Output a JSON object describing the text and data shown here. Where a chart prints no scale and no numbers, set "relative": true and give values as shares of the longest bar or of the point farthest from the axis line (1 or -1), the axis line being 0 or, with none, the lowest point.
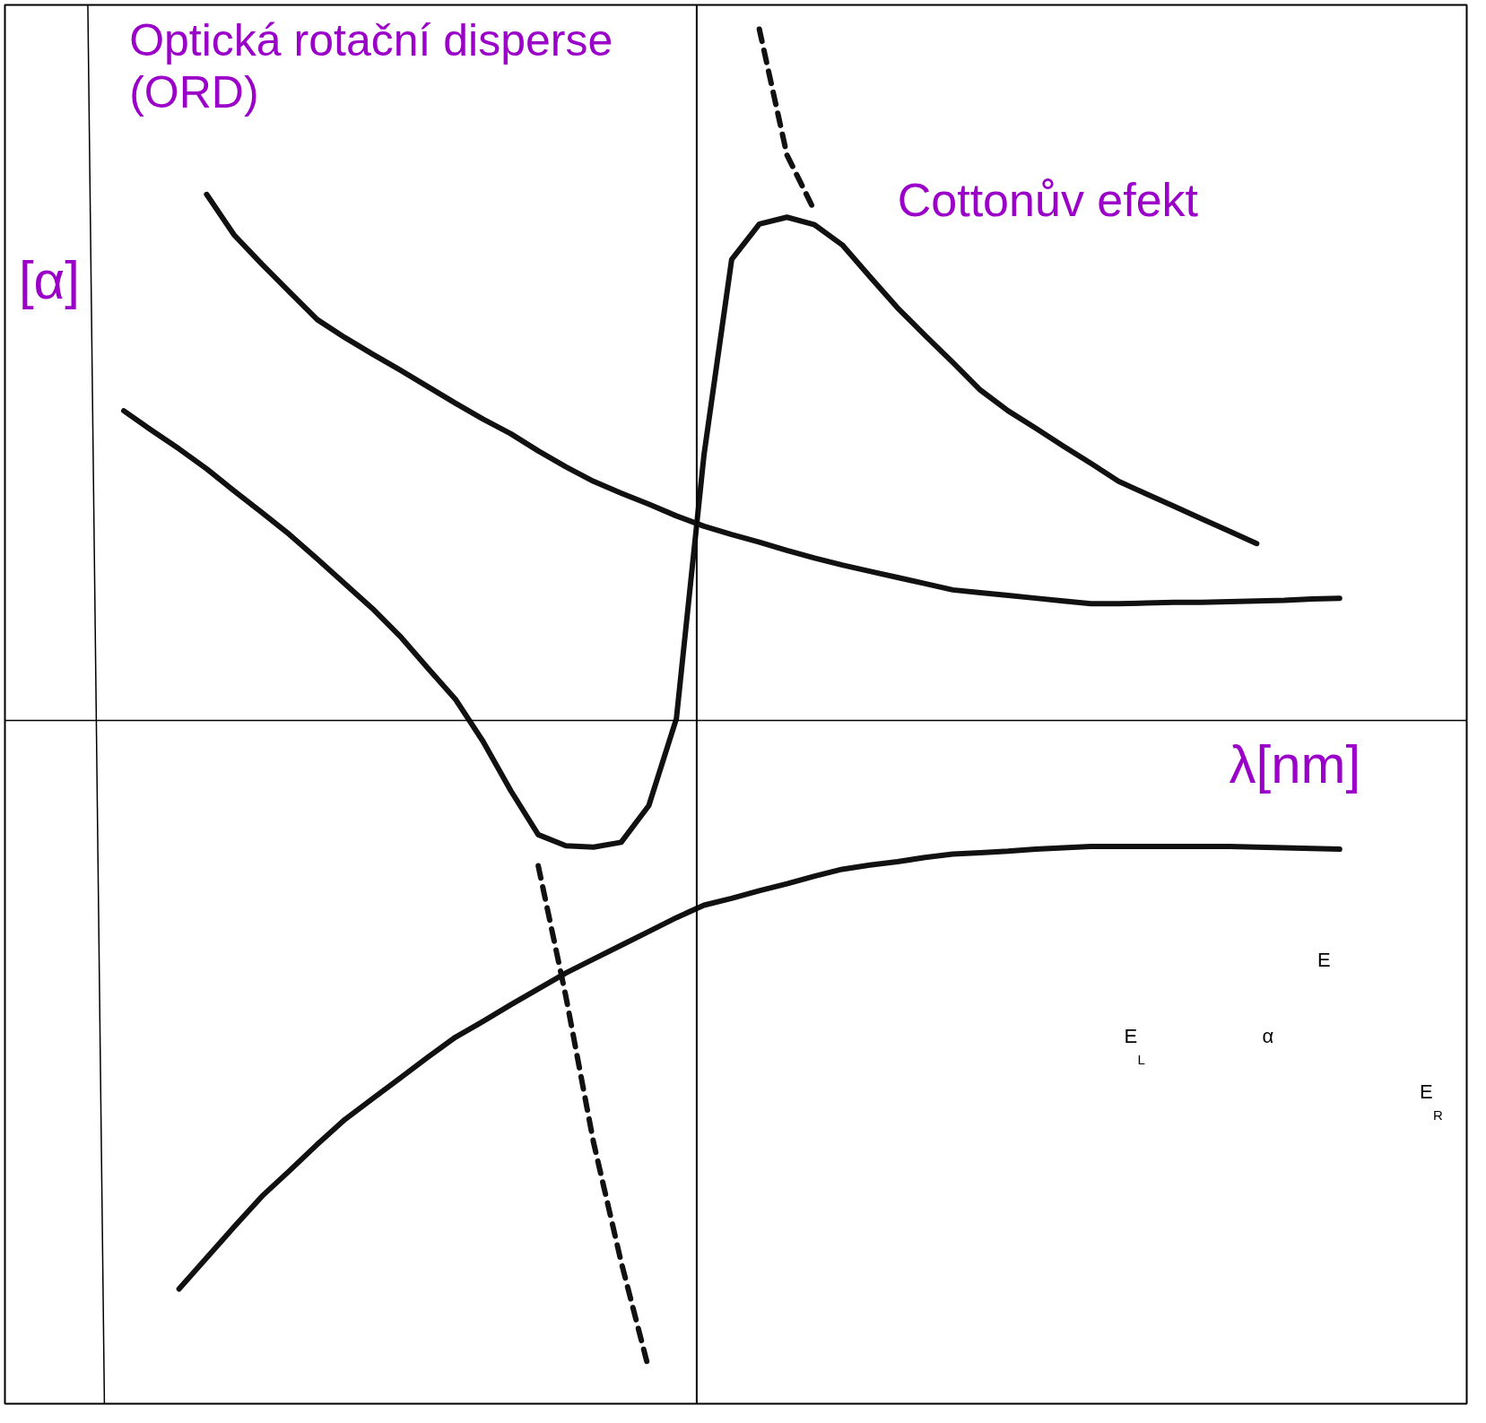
{
  "chart_data": {
    "type": "line",
    "relative": true,
    "title": "Optická rotační disperse\n(ORD)",
    "ylabel": "[α]",
    "xlabel": "λ[nm]",
    "grid": false,
    "marker": "none",
    "annotations": [
      "Cottonův efekt",
      "E",
      "E$_{L}$",
      "E$_{R}$",
      "α"
    ],
    "categories": [
      null,
      null,
      null,
      null,
      null,
      null,
      null,
      null,
      null,
      null,
      null,
      null,
      null,
      null,
      null,
      null,
      null,
      null,
      null,
      null,
      null,
      null,
      null,
      null,
      null,
      null,
      null,
      null,
      null,
      null,
      null,
      null,
      null,
      null,
      null,
      null,
      null,
      null,
      null,
      null,
      null,
      null,
      null,
      null,
      null,
      null
    ],
    "series": [
      {
        "color": "#111111",
        "line_style": "solid",
        "values": [
          null,
          null,
          null,
          null,
          0.761,
          0.702,
          0.66,
          0.62,
          0.58,
          0.554,
          0.53,
          0.507,
          0.483,
          0.459,
          0.436,
          0.415,
          0.39,
          0.367,
          0.346,
          0.329,
          0.313,
          0.296,
          0.281,
          0.269,
          0.258,
          0.246,
          0.235,
          0.225,
          0.216,
          0.207,
          0.198,
          0.189,
          0.185,
          0.181,
          0.177,
          0.173,
          0.169,
          0.169,
          0.17,
          0.171,
          0.171,
          0.172,
          0.173,
          0.174,
          0.176,
          0.177
        ]
      },
      {
        "color": "#111111",
        "line_style": "solid",
        "values": [
          null,
          null,
          null,
          -0.822,
          -0.777,
          -0.732,
          -0.688,
          -0.651,
          -0.613,
          -0.577,
          -0.547,
          -0.517,
          -0.487,
          -0.458,
          -0.435,
          -0.411,
          -0.388,
          -0.365,
          -0.345,
          -0.325,
          -0.305,
          -0.285,
          -0.267,
          -0.257,
          -0.246,
          -0.236,
          -0.225,
          -0.215,
          -0.209,
          -0.204,
          -0.198,
          -0.193,
          -0.191,
          -0.189,
          -0.186,
          -0.184,
          -0.182,
          -0.182,
          -0.182,
          -0.182,
          -0.182,
          -0.182,
          -0.183,
          -0.184,
          -0.185,
          -0.186
        ]
      },
      {
        "color": "#111111",
        "line_style": "solid",
        "values": [
          null,
          0.448,
          0.42,
          0.393,
          0.364,
          0.332,
          0.301,
          0.269,
          0.234,
          0.198,
          0.162,
          0.122,
          0.076,
          0.031,
          -0.03,
          -0.101,
          -0.165,
          -0.181,
          -0.183,
          -0.176,
          -0.123,
          0.003,
          0.385,
          0.667,
          0.718,
          0.728,
          0.717,
          0.688,
          0.642,
          0.597,
          0.557,
          0.518,
          0.478,
          0.448,
          0.423,
          0.397,
          0.372,
          0.346,
          0.328,
          0.31,
          0.292,
          0.274,
          0.256,
          null,
          null,
          null
        ]
      },
      {
        "color": "#111111",
        "line_style": "dashed",
        "values": [
          null,
          null,
          null,
          null,
          null,
          null,
          null,
          null,
          null,
          null,
          null,
          null,
          null,
          null,
          null,
          null,
          null,
          null,
          null,
          null,
          null,
          null,
          null,
          null,
          1.0,
          0.818,
          0.737,
          null,
          null,
          null,
          null,
          null,
          null,
          null,
          null,
          null,
          null,
          null,
          null,
          null,
          null,
          null,
          null,
          null,
          null,
          null
        ]
      },
      {
        "color": "#111111",
        "line_style": "dashed",
        "values": [
          null,
          null,
          null,
          null,
          null,
          null,
          null,
          null,
          null,
          null,
          null,
          null,
          null,
          null,
          null,
          null,
          -0.21,
          -0.399,
          -0.61,
          -0.783,
          -0.938,
          null,
          null,
          null,
          null,
          null,
          null,
          null,
          null,
          null,
          null,
          null,
          null,
          null,
          null,
          null,
          null,
          null,
          null,
          null,
          null,
          null,
          null,
          null,
          null,
          null
        ]
      }
    ]
  }
}
